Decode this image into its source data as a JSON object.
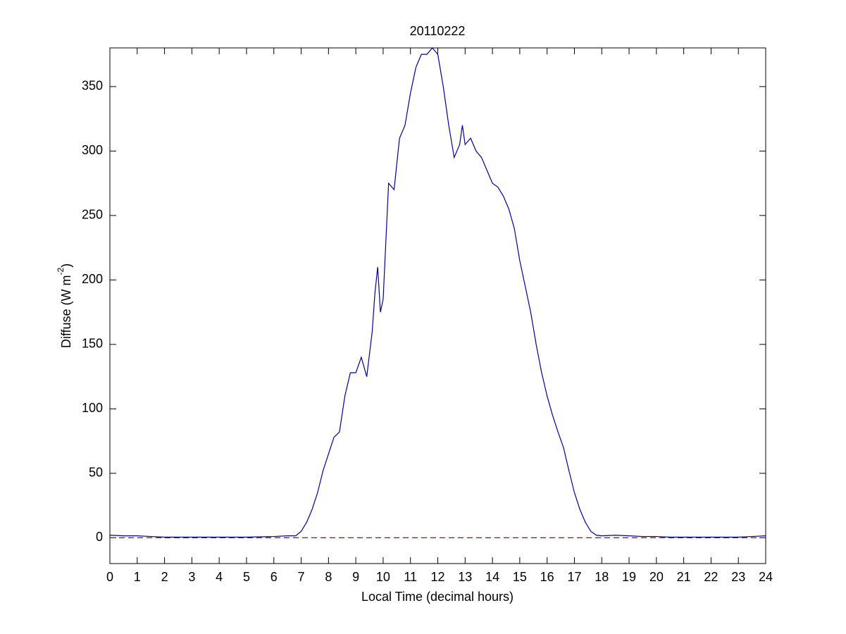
{
  "chart_data": {
    "type": "line",
    "title": "20110222",
    "xlabel": "Local Time (decimal hours)",
    "ylabel": {
      "text": "Diffuse (W m",
      "superscript": "-2",
      "suffix": ")"
    },
    "xlim": [
      0,
      24
    ],
    "ylim": [
      -20,
      380
    ],
    "xticks": [
      0,
      1,
      2,
      3,
      4,
      5,
      6,
      7,
      8,
      9,
      10,
      11,
      12,
      13,
      14,
      15,
      16,
      17,
      18,
      19,
      20,
      21,
      22,
      23,
      24
    ],
    "yticks": [
      0,
      50,
      100,
      150,
      200,
      250,
      300,
      350
    ],
    "grid": false,
    "series": [
      {
        "name": "Diffuse",
        "color": "#0000a0",
        "linestyle": "solid",
        "x": [
          0,
          0.5,
          1,
          1.5,
          2,
          3,
          4,
          5,
          6,
          6.5,
          6.8,
          7.0,
          7.2,
          7.4,
          7.6,
          7.8,
          8.0,
          8.2,
          8.4,
          8.6,
          8.8,
          9.0,
          9.2,
          9.4,
          9.6,
          9.7,
          9.8,
          9.9,
          10.0,
          10.1,
          10.2,
          10.4,
          10.5,
          10.6,
          10.8,
          11.0,
          11.2,
          11.4,
          11.6,
          11.8,
          12.0,
          12.2,
          12.4,
          12.6,
          12.8,
          12.9,
          13.0,
          13.2,
          13.4,
          13.6,
          13.8,
          14.0,
          14.2,
          14.4,
          14.6,
          14.8,
          15.0,
          15.2,
          15.4,
          15.6,
          15.8,
          16.0,
          16.2,
          16.4,
          16.6,
          16.8,
          17.0,
          17.2,
          17.4,
          17.6,
          17.8,
          18.0,
          18.5,
          19,
          19.5,
          20,
          20.5,
          21,
          22,
          23,
          23.5,
          24
        ],
        "values": [
          2,
          1.5,
          1.5,
          1,
          0.5,
          0.5,
          0.5,
          0.5,
          1,
          1.5,
          1.5,
          5,
          12,
          22,
          35,
          52,
          65,
          78,
          82,
          110,
          128,
          128,
          140,
          125,
          160,
          190,
          210,
          175,
          185,
          230,
          275,
          270,
          290,
          310,
          320,
          345,
          365,
          375,
          375,
          380,
          375,
          350,
          320,
          295,
          305,
          320,
          305,
          310,
          300,
          295,
          285,
          275,
          272,
          265,
          255,
          240,
          215,
          195,
          175,
          150,
          128,
          110,
          95,
          82,
          70,
          52,
          35,
          22,
          12,
          5,
          2,
          1.5,
          2,
          1.5,
          1,
          1,
          0.5,
          0.5,
          0.5,
          0.5,
          1,
          1.5
        ]
      },
      {
        "name": "Zero",
        "color": "#c00000",
        "linestyle": "dashed",
        "x": [
          0,
          24
        ],
        "values": [
          0,
          0
        ]
      }
    ]
  }
}
